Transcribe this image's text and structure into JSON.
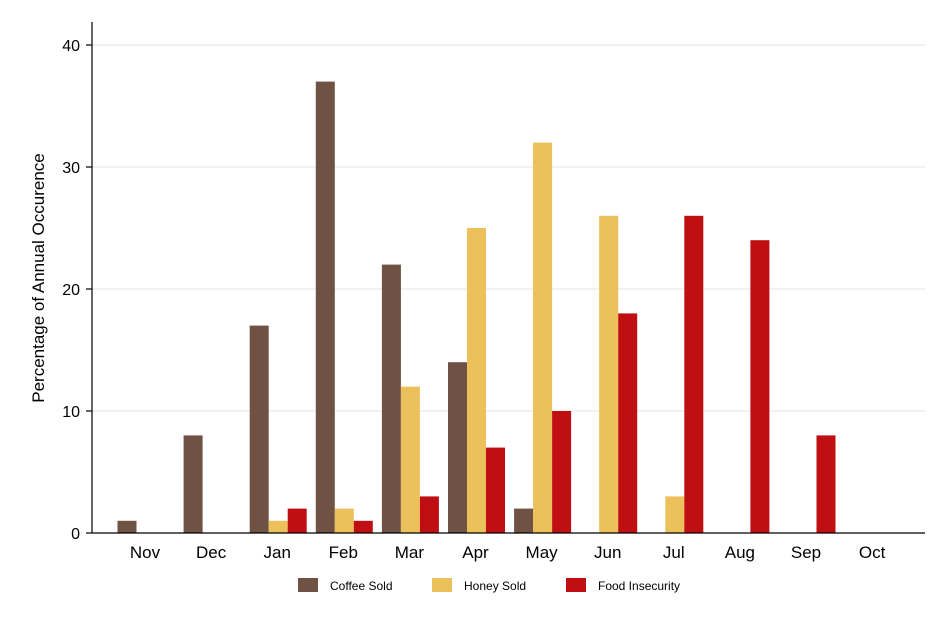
{
  "chart_data": {
    "type": "bar",
    "title": "",
    "xlabel": "",
    "ylabel": "Percentage of Annual Occurence",
    "categories": [
      "Nov",
      "Dec",
      "Jan",
      "Feb",
      "Mar",
      "Apr",
      "May",
      "Jun",
      "Jul",
      "Aug",
      "Sep",
      "Oct"
    ],
    "series": [
      {
        "name": "Coffee Sold",
        "color": "#6f5243",
        "values": [
          1,
          8,
          17,
          37,
          22,
          14,
          2,
          0,
          0,
          0,
          0,
          0
        ]
      },
      {
        "name": "Honey Sold",
        "color": "#ecc05a",
        "values": [
          0,
          0,
          1,
          2,
          12,
          25,
          32,
          26,
          3,
          0,
          0,
          0
        ]
      },
      {
        "name": "Food Insecurity",
        "color": "#c00f12",
        "values": [
          0,
          0,
          2,
          1,
          3,
          7,
          10,
          18,
          26,
          24,
          8,
          0
        ]
      }
    ],
    "ylim": [
      0,
      40
    ],
    "yticks": [
      0,
      10,
      20,
      30,
      40
    ],
    "grid": true,
    "legend_position": "bottom"
  }
}
